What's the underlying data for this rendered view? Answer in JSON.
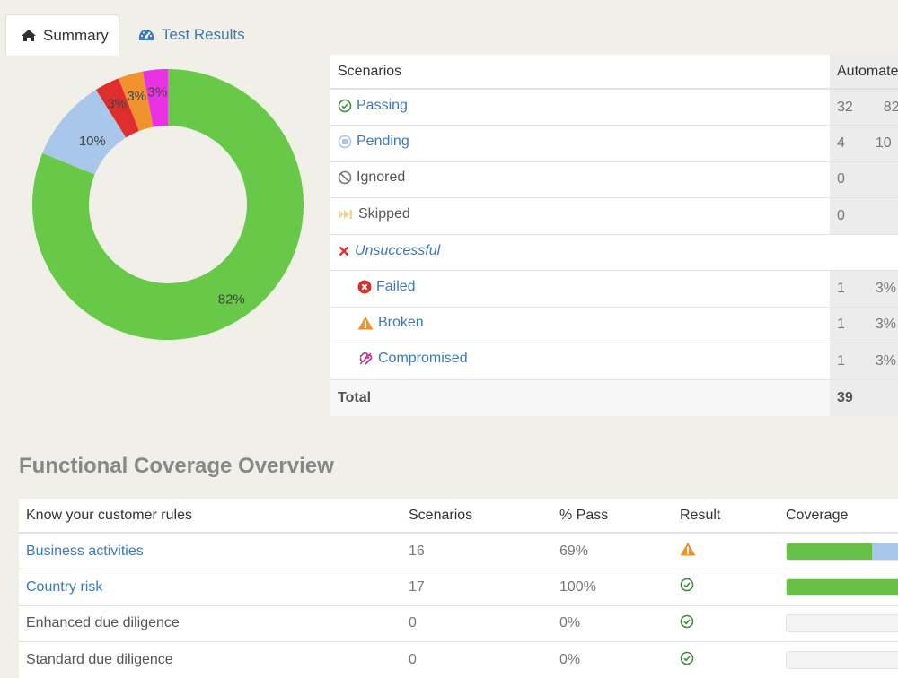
{
  "tabs": [
    {
      "label": "Summary",
      "icon": "home-icon",
      "active": true
    },
    {
      "label": "Test Results",
      "icon": "dashboard-icon",
      "active": false
    }
  ],
  "chart_data": {
    "type": "pie",
    "labels": [
      "Passing",
      "Pending",
      "Failed",
      "Broken",
      "Compromised"
    ],
    "values": [
      82,
      10,
      3,
      3,
      3
    ],
    "value_labels": [
      "82%",
      "10%",
      "3%",
      "3%",
      "3%"
    ],
    "colors": [
      "#67c947",
      "#a9c7ea",
      "#e02d2d",
      "#f0922d",
      "#e832e4"
    ],
    "donut": true
  },
  "summary": {
    "header": {
      "scenarios": "Scenarios",
      "automated": "Automate"
    },
    "rows": [
      {
        "label": "Passing",
        "icon": "check-circle-icon",
        "count": "32",
        "percent": "82"
      },
      {
        "label": "Pending",
        "icon": "pending-circle-icon",
        "count": "4",
        "percent": "10"
      },
      {
        "label": "Ignored",
        "icon": "ban-icon",
        "count": "0",
        "percent": ""
      },
      {
        "label": "Skipped",
        "icon": "fast-forward-icon",
        "count": "0",
        "percent": ""
      },
      {
        "label": "Unsuccessful",
        "icon": "x-icon",
        "count": "",
        "percent": ""
      },
      {
        "label": "Failed",
        "icon": "x-circle-icon",
        "count": "1",
        "percent": "3%"
      },
      {
        "label": "Broken",
        "icon": "warning-triangle-icon",
        "count": "1",
        "percent": "3%"
      },
      {
        "label": "Compromised",
        "icon": "broken-link-icon",
        "count": "1",
        "percent": "3%"
      }
    ],
    "total": {
      "label": "Total",
      "count": "39"
    }
  },
  "coverage": {
    "title": "Functional Coverage Overview",
    "headers": [
      "Know your customer rules",
      "Scenarios",
      "% Pass",
      "Result",
      "Coverage"
    ],
    "rows": [
      {
        "name": "Business activities",
        "scenarios": "16",
        "pass": "69%",
        "result_icon": "warning-triangle-icon",
        "coverage_pass": 0.69,
        "coverage_pending": 0.31,
        "link": true
      },
      {
        "name": "Country risk",
        "scenarios": "17",
        "pass": "100%",
        "result_icon": "check-circle-icon",
        "coverage_pass": 1.0,
        "coverage_pending": 0,
        "link": true
      },
      {
        "name": "Enhanced due diligence",
        "scenarios": "0",
        "pass": "0%",
        "result_icon": "check-circle-icon",
        "coverage_pass": 0,
        "coverage_pending": 0,
        "link": false
      },
      {
        "name": "Standard due diligence",
        "scenarios": "0",
        "pass": "0%",
        "result_icon": "check-circle-icon",
        "coverage_pass": 0,
        "coverage_pending": 0,
        "link": false
      }
    ]
  }
}
